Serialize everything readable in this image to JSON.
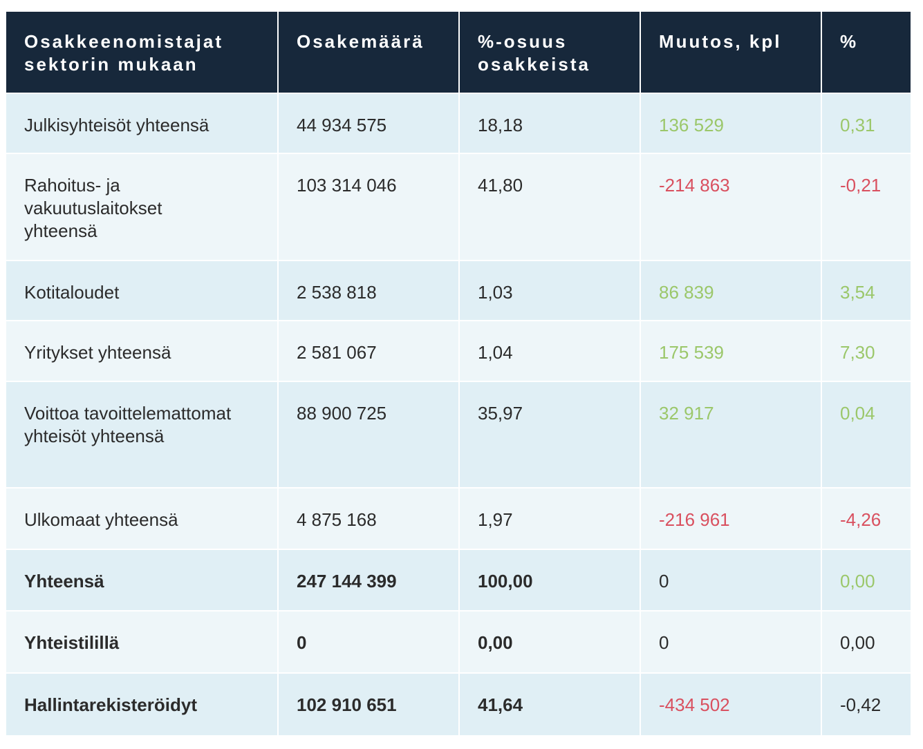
{
  "headers": [
    "Osakkeenomistajat sektorin mukaan",
    "Osakemäärä",
    "%-osuus osakkeista",
    "Muutos, kpl",
    "%"
  ],
  "colors": {
    "header_bg": "#17283b",
    "positive": "#9bc76a",
    "negative": "#d9505f",
    "row_a": "#e0eff5",
    "row_b": "#eef6f9"
  },
  "rows": [
    {
      "sector": "Julkisyhteisöt yhteensä",
      "shares": "44 934 575",
      "share_pct": "18,18",
      "change": "136 529",
      "change_pct": "0,31",
      "change_tone": "pos",
      "pct_tone": "pos",
      "bold": false
    },
    {
      "sector": "Rahoitus- ja vakuutuslaitokset yhteensä",
      "shares": "103 314 046",
      "share_pct": "41,80",
      "change": "-214 863",
      "change_pct": "-0,21",
      "change_tone": "neg",
      "pct_tone": "neg",
      "bold": false
    },
    {
      "sector": "Kotitaloudet",
      "shares": "2 538 818",
      "share_pct": "1,03",
      "change": "86 839",
      "change_pct": "3,54",
      "change_tone": "pos",
      "pct_tone": "pos",
      "bold": false
    },
    {
      "sector": "Yritykset yhteensä",
      "shares": "2 581 067",
      "share_pct": "1,04",
      "change": "175 539",
      "change_pct": "7,30",
      "change_tone": "pos",
      "pct_tone": "pos",
      "bold": false
    },
    {
      "sector": "Voittoa tavoittelemattomat yhteisöt yhteensä",
      "shares": "88 900 725",
      "share_pct": "35,97",
      "change": "32 917",
      "change_pct": "0,04",
      "change_tone": "pos",
      "pct_tone": "pos",
      "bold": false
    },
    {
      "sector": "Ulkomaat yhteensä",
      "shares": "4 875 168",
      "share_pct": "1,97",
      "change": "-216 961",
      "change_pct": "-4,26",
      "change_tone": "neg",
      "pct_tone": "neg",
      "bold": false
    },
    {
      "sector": "Yhteensä",
      "shares": "247 144 399",
      "share_pct": "100,00",
      "change": "0",
      "change_pct": "0,00",
      "change_tone": "neu",
      "pct_tone": "pos",
      "bold": true
    },
    {
      "sector": "Yhteistilillä",
      "shares": "0",
      "share_pct": "0,00",
      "change": "0",
      "change_pct": "0,00",
      "change_tone": "neu",
      "pct_tone": "neu",
      "bold": true
    },
    {
      "sector": "Hallintarekisteröidyt",
      "shares": "102 910 651",
      "share_pct": "41,64",
      "change": "-434 502",
      "change_pct": "-0,42",
      "change_tone": "neg",
      "pct_tone": "neu",
      "bold": true
    }
  ]
}
